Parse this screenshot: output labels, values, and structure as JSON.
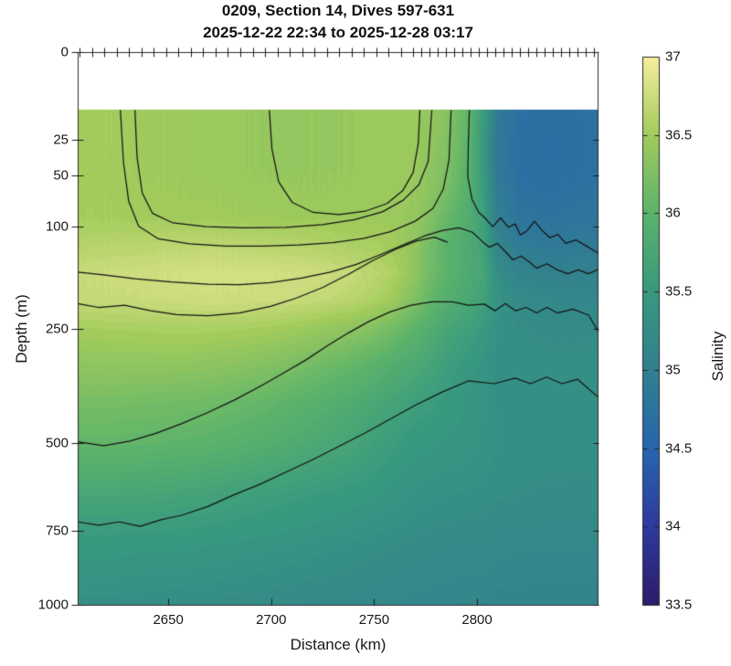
{
  "figure": {
    "title_line1": "0209, Section 14, Dives 597-631",
    "title_line2": "2025-12-22 22:34 to 2025-12-28 03:17",
    "background": "#ffffff"
  },
  "chart_data": {
    "type": "heatmap",
    "subtype": "filled-contour-ocean-section",
    "title": "0209, Section 14, Dives 597-631",
    "subtitle": "2025-12-22 22:34 to 2025-12-28 03:17",
    "xlabel": "Distance (km)",
    "ylabel": "Depth (m)",
    "colorbar_label": "Salinity",
    "x_axis": {
      "min": 2606,
      "max": 2859,
      "ticks": [
        2650,
        2700,
        2750,
        2800
      ],
      "tick_labels": [
        "2650",
        "2700",
        "2750",
        "2800"
      ]
    },
    "y_axis": {
      "min": 0,
      "max": 1000,
      "scale": "sqrt",
      "reversed": true,
      "ticks": [
        0,
        25,
        50,
        100,
        250,
        500,
        750,
        1000
      ],
      "tick_labels": [
        "0",
        "25",
        "50",
        "100",
        "250",
        "500",
        "750",
        "1000"
      ]
    },
    "colorbar": {
      "min": 33.5,
      "max": 37,
      "ticks": [
        37,
        36.5,
        36,
        35.5,
        35,
        34.5,
        34,
        33.5
      ],
      "tick_labels": [
        "37",
        "36.5",
        "36",
        "35.5",
        "35",
        "34.5",
        "34",
        "33.5"
      ],
      "colormap": "haline",
      "inner_tick_values": [
        34,
        34.5,
        35,
        35.5,
        36,
        36.5
      ]
    },
    "colormap_stops": [
      [
        33.5,
        "#2d1c6b"
      ],
      [
        34.0,
        "#2e3a9e"
      ],
      [
        34.5,
        "#2766ae"
      ],
      [
        35.0,
        "#32808f"
      ],
      [
        35.5,
        "#38997f"
      ],
      [
        36.0,
        "#5bb36b"
      ],
      [
        36.5,
        "#a2cb5c"
      ],
      [
        37.0,
        "#f6ee9f"
      ]
    ],
    "data_top_depth_m": 11,
    "fill_level_step": 0.05,
    "contour_levels_est": [
      35.5,
      36.0,
      36.5
    ],
    "grid": {
      "x_km": [
        2606,
        2620,
        2635,
        2650,
        2665,
        2680,
        2695,
        2710,
        2725,
        2740,
        2750,
        2760,
        2770,
        2778,
        2785,
        2796,
        2803,
        2810,
        2820,
        2835,
        2859
      ],
      "depth_m": [
        11,
        25,
        40,
        60,
        90,
        120,
        160,
        200,
        250,
        320,
        400,
        500,
        650,
        800,
        1000
      ],
      "salinity": [
        [
          36.5,
          36.52,
          36.48,
          36.47,
          36.46,
          36.45,
          36.42,
          36.41,
          36.42,
          36.43,
          36.45,
          36.47,
          36.45,
          36.38,
          36.32,
          36.02,
          35.55,
          34.9,
          34.72,
          34.7,
          34.72
        ],
        [
          36.5,
          36.52,
          36.48,
          36.47,
          36.46,
          36.45,
          36.42,
          36.41,
          36.42,
          36.43,
          36.45,
          36.47,
          36.45,
          36.37,
          36.29,
          36.0,
          35.5,
          34.85,
          34.7,
          34.68,
          34.72
        ],
        [
          36.5,
          36.51,
          36.48,
          36.47,
          36.46,
          36.45,
          36.42,
          36.41,
          36.42,
          36.43,
          36.45,
          36.46,
          36.44,
          36.36,
          36.26,
          35.97,
          35.5,
          34.85,
          34.7,
          34.68,
          34.72
        ],
        [
          36.5,
          36.51,
          36.49,
          36.48,
          36.47,
          36.46,
          36.44,
          36.43,
          36.43,
          36.44,
          36.45,
          36.46,
          36.43,
          36.34,
          36.22,
          35.92,
          35.55,
          34.9,
          34.72,
          34.7,
          34.74
        ],
        [
          36.52,
          36.52,
          36.51,
          36.51,
          36.5,
          36.49,
          36.48,
          36.47,
          36.47,
          36.47,
          36.47,
          36.45,
          36.4,
          36.26,
          36.08,
          35.87,
          35.6,
          35.0,
          34.78,
          34.76,
          34.8
        ],
        [
          36.6,
          36.62,
          36.63,
          36.65,
          36.65,
          36.65,
          36.63,
          36.61,
          36.59,
          36.55,
          36.53,
          36.49,
          36.37,
          36.16,
          35.98,
          35.82,
          35.66,
          35.1,
          34.9,
          34.86,
          34.9
        ],
        [
          36.72,
          36.74,
          36.76,
          36.78,
          36.8,
          36.8,
          36.79,
          36.78,
          36.75,
          36.7,
          36.64,
          36.56,
          36.36,
          36.15,
          36.0,
          35.82,
          35.72,
          35.3,
          35.08,
          35.03,
          35.03
        ],
        [
          36.7,
          36.71,
          36.73,
          36.74,
          36.76,
          36.76,
          36.75,
          36.73,
          36.69,
          36.64,
          36.57,
          36.46,
          36.25,
          36.05,
          35.92,
          35.77,
          35.66,
          35.36,
          35.22,
          35.16,
          35.15
        ],
        [
          36.52,
          36.53,
          36.54,
          36.55,
          36.55,
          36.54,
          36.52,
          36.48,
          36.42,
          36.35,
          36.27,
          36.16,
          36.0,
          35.87,
          35.74,
          35.61,
          35.5,
          35.32,
          35.28,
          35.25,
          35.25
        ],
        [
          36.36,
          36.37,
          36.37,
          36.37,
          36.36,
          36.33,
          36.29,
          36.23,
          36.15,
          36.06,
          35.98,
          35.88,
          35.79,
          35.69,
          35.59,
          35.46,
          35.4,
          35.3,
          35.3,
          35.3,
          35.3
        ],
        [
          36.2,
          36.2,
          36.19,
          36.18,
          36.16,
          36.12,
          36.07,
          36.0,
          35.92,
          35.84,
          35.77,
          35.69,
          35.6,
          35.55,
          35.5,
          35.41,
          35.38,
          35.32,
          35.3,
          35.3,
          35.3
        ],
        [
          36.05,
          36.05,
          36.04,
          36.02,
          36.0,
          35.96,
          35.91,
          35.85,
          35.78,
          35.7,
          35.62,
          35.54,
          35.46,
          35.44,
          35.42,
          35.4,
          35.36,
          35.33,
          35.3,
          35.3,
          35.3
        ],
        [
          35.72,
          35.72,
          35.71,
          35.69,
          35.66,
          35.62,
          35.58,
          35.54,
          35.5,
          35.46,
          35.43,
          35.39,
          35.35,
          35.33,
          35.32,
          35.31,
          35.3,
          35.28,
          35.27,
          35.26,
          35.25
        ],
        [
          35.46,
          35.46,
          35.45,
          35.44,
          35.43,
          35.41,
          35.39,
          35.37,
          35.34,
          35.31,
          35.29,
          35.27,
          35.24,
          35.23,
          35.22,
          35.21,
          35.21,
          35.19,
          35.18,
          35.18,
          35.17
        ],
        [
          35.3,
          35.3,
          35.29,
          35.28,
          35.27,
          35.25,
          35.24,
          35.22,
          35.21,
          35.2,
          35.18,
          35.16,
          35.15,
          35.14,
          35.13,
          35.12,
          35.12,
          35.1,
          35.09,
          35.08,
          35.08
        ]
      ]
    },
    "contour_lines": [
      [
        [
          0.082,
          0.105
        ],
        [
          0.088,
          0.2
        ],
        [
          0.098,
          0.27
        ],
        [
          0.117,
          0.315
        ],
        [
          0.155,
          0.338
        ],
        [
          0.215,
          0.347
        ],
        [
          0.285,
          0.351
        ],
        [
          0.355,
          0.351
        ],
        [
          0.425,
          0.349
        ],
        [
          0.49,
          0.345
        ],
        [
          0.55,
          0.337
        ],
        [
          0.6,
          0.325
        ],
        [
          0.648,
          0.306
        ],
        [
          0.682,
          0.283
        ],
        [
          0.702,
          0.248
        ],
        [
          0.713,
          0.195
        ],
        [
          0.717,
          0.105
        ]
      ],
      [
        [
          0.11,
          0.105
        ],
        [
          0.114,
          0.19
        ],
        [
          0.124,
          0.255
        ],
        [
          0.144,
          0.292
        ],
        [
          0.183,
          0.309
        ],
        [
          0.247,
          0.316
        ],
        [
          0.322,
          0.318
        ],
        [
          0.4,
          0.317
        ],
        [
          0.47,
          0.312
        ],
        [
          0.532,
          0.303
        ],
        [
          0.585,
          0.289
        ],
        [
          0.625,
          0.268
        ],
        [
          0.655,
          0.24
        ],
        [
          0.673,
          0.198
        ],
        [
          0.68,
          0.105
        ]
      ],
      [
        [
          0.368,
          0.105
        ],
        [
          0.373,
          0.175
        ],
        [
          0.386,
          0.235
        ],
        [
          0.412,
          0.272
        ],
        [
          0.452,
          0.29
        ],
        [
          0.502,
          0.294
        ],
        [
          0.552,
          0.288
        ],
        [
          0.594,
          0.274
        ],
        [
          0.624,
          0.251
        ],
        [
          0.644,
          0.218
        ],
        [
          0.654,
          0.165
        ],
        [
          0.657,
          0.105
        ]
      ],
      [
        [
          0.752,
          0.105
        ],
        [
          0.75,
          0.17
        ],
        [
          0.749,
          0.225
        ],
        [
          0.757,
          0.266
        ],
        [
          0.77,
          0.29
        ],
        [
          0.782,
          0.3
        ],
        [
          0.797,
          0.316
        ],
        [
          0.812,
          0.3
        ],
        [
          0.827,
          0.317
        ],
        [
          0.84,
          0.311
        ],
        [
          0.85,
          0.331
        ],
        [
          0.863,
          0.323
        ],
        [
          0.877,
          0.306
        ],
        [
          0.892,
          0.323
        ],
        [
          0.907,
          0.336
        ],
        [
          0.922,
          0.33
        ],
        [
          0.937,
          0.346
        ],
        [
          0.957,
          0.34
        ],
        [
          0.977,
          0.351
        ],
        [
          1.0,
          0.364
        ]
      ],
      [
        [
          0,
          0.398
        ],
        [
          0.05,
          0.403
        ],
        [
          0.11,
          0.41
        ],
        [
          0.18,
          0.416
        ],
        [
          0.25,
          0.42
        ],
        [
          0.31,
          0.421
        ],
        [
          0.37,
          0.417
        ],
        [
          0.43,
          0.409
        ],
        [
          0.485,
          0.398
        ],
        [
          0.535,
          0.384
        ],
        [
          0.58,
          0.367
        ],
        [
          0.625,
          0.349
        ],
        [
          0.665,
          0.333
        ],
        [
          0.7,
          0.323
        ],
        [
          0.732,
          0.318
        ],
        [
          0.758,
          0.326
        ],
        [
          0.776,
          0.342
        ],
        [
          0.79,
          0.353
        ],
        [
          0.806,
          0.346
        ],
        [
          0.822,
          0.362
        ],
        [
          0.836,
          0.376
        ],
        [
          0.851,
          0.369
        ],
        [
          0.866,
          0.379
        ],
        [
          0.881,
          0.391
        ],
        [
          0.901,
          0.383
        ],
        [
          0.921,
          0.394
        ],
        [
          0.941,
          0.401
        ],
        [
          0.961,
          0.394
        ],
        [
          0.981,
          0.401
        ],
        [
          1.0,
          0.393
        ]
      ],
      [
        [
          0,
          0.455
        ],
        [
          0.04,
          0.462
        ],
        [
          0.09,
          0.458
        ],
        [
          0.14,
          0.468
        ],
        [
          0.19,
          0.475
        ],
        [
          0.25,
          0.477
        ],
        [
          0.31,
          0.472
        ],
        [
          0.37,
          0.46
        ],
        [
          0.42,
          0.445
        ],
        [
          0.47,
          0.426
        ],
        [
          0.52,
          0.402
        ],
        [
          0.565,
          0.378
        ],
        [
          0.61,
          0.357
        ],
        [
          0.65,
          0.342
        ],
        [
          0.685,
          0.335
        ],
        [
          0.71,
          0.344
        ]
      ],
      [
        [
          0,
          0.705
        ],
        [
          0.05,
          0.712
        ],
        [
          0.1,
          0.704
        ],
        [
          0.15,
          0.69
        ],
        [
          0.2,
          0.672
        ],
        [
          0.25,
          0.652
        ],
        [
          0.3,
          0.63
        ],
        [
          0.35,
          0.605
        ],
        [
          0.4,
          0.578
        ],
        [
          0.44,
          0.556
        ],
        [
          0.48,
          0.531
        ],
        [
          0.52,
          0.508
        ],
        [
          0.56,
          0.487
        ],
        [
          0.6,
          0.47
        ],
        [
          0.64,
          0.458
        ],
        [
          0.68,
          0.452
        ],
        [
          0.72,
          0.452
        ],
        [
          0.75,
          0.458
        ],
        [
          0.781,
          0.456
        ],
        [
          0.801,
          0.468
        ],
        [
          0.821,
          0.455
        ],
        [
          0.841,
          0.468
        ],
        [
          0.861,
          0.462
        ],
        [
          0.881,
          0.472
        ],
        [
          0.901,
          0.462
        ],
        [
          0.921,
          0.472
        ],
        [
          0.951,
          0.465
        ],
        [
          0.981,
          0.476
        ],
        [
          1.0,
          0.506
        ]
      ],
      [
        [
          0,
          0.85
        ],
        [
          0.04,
          0.856
        ],
        [
          0.08,
          0.85
        ],
        [
          0.12,
          0.858
        ],
        [
          0.16,
          0.846
        ],
        [
          0.2,
          0.838
        ],
        [
          0.25,
          0.822
        ],
        [
          0.3,
          0.801
        ],
        [
          0.35,
          0.782
        ],
        [
          0.4,
          0.76
        ],
        [
          0.45,
          0.738
        ],
        [
          0.5,
          0.714
        ],
        [
          0.55,
          0.69
        ],
        [
          0.6,
          0.664
        ],
        [
          0.65,
          0.638
        ],
        [
          0.7,
          0.615
        ],
        [
          0.75,
          0.595
        ],
        [
          0.8,
          0.6
        ],
        [
          0.84,
          0.59
        ],
        [
          0.87,
          0.6
        ],
        [
          0.9,
          0.588
        ],
        [
          0.93,
          0.6
        ],
        [
          0.96,
          0.592
        ],
        [
          1.0,
          0.625
        ]
      ]
    ],
    "top_dive_ticks_km": [
      2607,
      2613,
      2619,
      2625,
      2631,
      2637,
      2643,
      2649,
      2655,
      2661,
      2667,
      2673,
      2679,
      2685,
      2691,
      2697,
      2703,
      2709,
      2715,
      2721,
      2727,
      2733,
      2739,
      2745,
      2751,
      2757,
      2763,
      2769,
      2773,
      2777,
      2781,
      2785,
      2789,
      2793,
      2797,
      2801,
      2805,
      2809,
      2813,
      2817,
      2821,
      2825,
      2829,
      2833,
      2837,
      2841,
      2845,
      2849,
      2853,
      2857
    ]
  }
}
